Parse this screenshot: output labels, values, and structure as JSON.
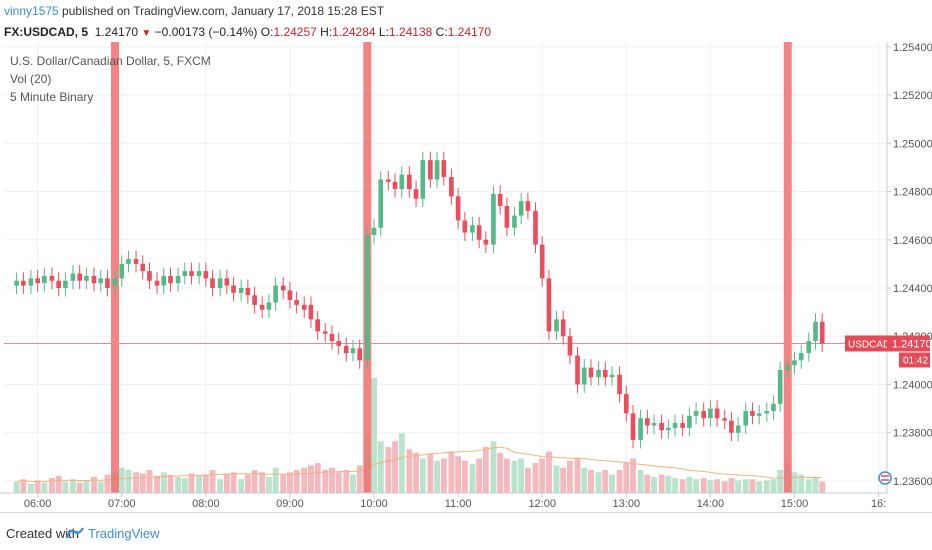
{
  "header": {
    "user": "vinny1575",
    "published": " published on TradingView.com, January 17, 2018 15:28 EST"
  },
  "quote": {
    "symbol": "FX:USDCAD, 5",
    "last": "1.24170",
    "arrow": "▼",
    "change": "−0.00173 (−0.14%)",
    "o_label": "O:",
    "o": "1.24257",
    "h_label": "H:",
    "h": "1.24284",
    "l_label": "L:",
    "l": "1.24138",
    "c_label": "C:",
    "c": "1.24170"
  },
  "legend": {
    "instrument": "U.S. Dollar/Canadian Dollar, 5, FXCM",
    "volume": "Vol (20)",
    "indicator": "5 Minute Binary"
  },
  "price_tag": {
    "symbol": "USDCAD",
    "price": "1.24170",
    "countdown": "01:42"
  },
  "footer": {
    "created": "Created with",
    "brand": "TradingView"
  },
  "colors": {
    "up": "#53b987",
    "down": "#eb4d5c",
    "highlight": "#f26d6d",
    "volume_up": "#b9e3cc",
    "volume_down": "#f4b9bf",
    "volume_ma": "#f5b27a",
    "last_price_line": "#e88b90",
    "tag_bg": "#e24b57"
  },
  "chart_data": {
    "type": "candlestick",
    "title": "U.S. Dollar/Canadian Dollar, 5, FXCM",
    "y_ticks": [
      "1.25400",
      "1.25200",
      "1.25000",
      "1.24800",
      "1.24600",
      "1.24400",
      "1.24200",
      "1.24000",
      "1.23800",
      "1.23600"
    ],
    "x_ticks": [
      "06:00",
      "07:00",
      "08:00",
      "09:00",
      "10:00",
      "11:00",
      "12:00",
      "13:00",
      "14:00",
      "15:00",
      "16:"
    ],
    "ylim": [
      1.2355,
      1.2542
    ],
    "xlim": [
      5.6,
      16.1
    ],
    "last_price": 1.2417,
    "highlight_times": [
      6.92,
      9.92,
      14.92
    ],
    "candles": [
      [
        5.75,
        1.2441,
        1.2443
      ],
      [
        5.83,
        1.2443,
        1.2441
      ],
      [
        5.92,
        1.2441,
        1.2444
      ],
      [
        6.0,
        1.2444,
        1.2442
      ],
      [
        6.08,
        1.2442,
        1.2445
      ],
      [
        6.17,
        1.2445,
        1.2443
      ],
      [
        6.25,
        1.2443,
        1.244
      ],
      [
        6.33,
        1.244,
        1.2443
      ],
      [
        6.42,
        1.2443,
        1.2446
      ],
      [
        6.5,
        1.2446,
        1.2443
      ],
      [
        6.58,
        1.2443,
        1.2445
      ],
      [
        6.67,
        1.2445,
        1.2442
      ],
      [
        6.75,
        1.2442,
        1.2444
      ],
      [
        6.83,
        1.2444,
        1.244
      ],
      [
        6.92,
        1.2441,
        1.2444
      ],
      [
        7.0,
        1.2444,
        1.245
      ],
      [
        7.08,
        1.245,
        1.2452
      ],
      [
        7.17,
        1.2452,
        1.245
      ],
      [
        7.25,
        1.245,
        1.2447
      ],
      [
        7.33,
        1.2447,
        1.2443
      ],
      [
        7.42,
        1.2443,
        1.2441
      ],
      [
        7.5,
        1.2441,
        1.2445
      ],
      [
        7.58,
        1.2445,
        1.2442
      ],
      [
        7.67,
        1.2442,
        1.2445
      ],
      [
        7.75,
        1.2445,
        1.2447
      ],
      [
        7.83,
        1.2447,
        1.2445
      ],
      [
        7.92,
        1.2445,
        1.2447
      ],
      [
        8.0,
        1.2447,
        1.2444
      ],
      [
        8.08,
        1.2444,
        1.244
      ],
      [
        8.17,
        1.244,
        1.2444
      ],
      [
        8.25,
        1.2444,
        1.2441
      ],
      [
        8.33,
        1.2441,
        1.2438
      ],
      [
        8.42,
        1.2438,
        1.244
      ],
      [
        8.5,
        1.244,
        1.2437
      ],
      [
        8.58,
        1.2437,
        1.2433
      ],
      [
        8.67,
        1.2433,
        1.2431
      ],
      [
        8.75,
        1.2431,
        1.2434
      ],
      [
        8.83,
        1.2434,
        1.2441
      ],
      [
        8.92,
        1.2441,
        1.2439
      ],
      [
        9.0,
        1.2439,
        1.2435
      ],
      [
        9.08,
        1.2435,
        1.2433
      ],
      [
        9.17,
        1.2433,
        1.2431
      ],
      [
        9.25,
        1.2433,
        1.2427
      ],
      [
        9.33,
        1.2427,
        1.2422
      ],
      [
        9.42,
        1.2422,
        1.2421
      ],
      [
        9.5,
        1.2421,
        1.2418
      ],
      [
        9.58,
        1.2418,
        1.2416
      ],
      [
        9.67,
        1.2416,
        1.2413
      ],
      [
        9.75,
        1.2413,
        1.2415
      ],
      [
        9.83,
        1.2415,
        1.241
      ],
      [
        9.92,
        1.241,
        1.2462
      ],
      [
        10.0,
        1.2462,
        1.2465
      ],
      [
        10.08,
        1.2465,
        1.2485
      ],
      [
        10.17,
        1.2485,
        1.2484
      ],
      [
        10.25,
        1.2484,
        1.2481
      ],
      [
        10.33,
        1.2481,
        1.2487
      ],
      [
        10.42,
        1.2487,
        1.2481
      ],
      [
        10.5,
        1.2481,
        1.2477
      ],
      [
        10.58,
        1.2477,
        1.2493
      ],
      [
        10.67,
        1.2493,
        1.2485
      ],
      [
        10.75,
        1.2485,
        1.2493
      ],
      [
        10.83,
        1.2493,
        1.2486
      ],
      [
        10.92,
        1.2486,
        1.2478
      ],
      [
        11.0,
        1.2478,
        1.2468
      ],
      [
        11.08,
        1.2468,
        1.2463
      ],
      [
        11.17,
        1.2463,
        1.2466
      ],
      [
        11.25,
        1.2466,
        1.246
      ],
      [
        11.33,
        1.246,
        1.2458
      ],
      [
        11.42,
        1.2458,
        1.2479
      ],
      [
        11.5,
        1.2479,
        1.2474
      ],
      [
        11.58,
        1.2474,
        1.2465
      ],
      [
        11.67,
        1.2465,
        1.247
      ],
      [
        11.75,
        1.247,
        1.2476
      ],
      [
        11.83,
        1.2476,
        1.2472
      ],
      [
        11.92,
        1.2472,
        1.2458
      ],
      [
        12.0,
        1.2458,
        1.2444
      ],
      [
        12.08,
        1.2444,
        1.2422
      ],
      [
        12.17,
        1.2422,
        1.2427
      ],
      [
        12.25,
        1.2427,
        1.242
      ],
      [
        12.33,
        1.242,
        1.2412
      ],
      [
        12.42,
        1.2412,
        1.24
      ],
      [
        12.5,
        1.24,
        1.2407
      ],
      [
        12.58,
        1.2407,
        1.2403
      ],
      [
        12.67,
        1.2403,
        1.2406
      ],
      [
        12.75,
        1.2406,
        1.2403
      ],
      [
        12.83,
        1.2403,
        1.2404
      ],
      [
        12.92,
        1.2404,
        1.2396
      ],
      [
        13.0,
        1.2396,
        1.2388
      ],
      [
        13.08,
        1.2388,
        1.2377
      ],
      [
        13.17,
        1.2377,
        1.2386
      ],
      [
        13.25,
        1.2386,
        1.2383
      ],
      [
        13.33,
        1.2383,
        1.2384
      ],
      [
        13.42,
        1.2384,
        1.2381
      ],
      [
        13.5,
        1.2381,
        1.2382
      ],
      [
        13.58,
        1.2382,
        1.2384
      ],
      [
        13.67,
        1.2384,
        1.2382
      ],
      [
        13.75,
        1.2382,
        1.2387
      ],
      [
        13.83,
        1.2387,
        1.2389
      ],
      [
        13.92,
        1.2389,
        1.2386
      ],
      [
        14.0,
        1.2386,
        1.239
      ],
      [
        14.08,
        1.239,
        1.2386
      ],
      [
        14.17,
        1.2386,
        1.2385
      ],
      [
        14.25,
        1.2385,
        1.238
      ],
      [
        14.33,
        1.238,
        1.2383
      ],
      [
        14.42,
        1.2383,
        1.2389
      ],
      [
        14.5,
        1.2389,
        1.2387
      ],
      [
        14.58,
        1.2387,
        1.2388
      ],
      [
        14.67,
        1.2388,
        1.2389
      ],
      [
        14.75,
        1.2389,
        1.2392
      ],
      [
        14.83,
        1.2392,
        1.2406
      ],
      [
        14.92,
        1.2406,
        1.2408
      ],
      [
        15.0,
        1.2408,
        1.241
      ],
      [
        15.08,
        1.241,
        1.2413
      ],
      [
        15.17,
        1.2413,
        1.2418
      ],
      [
        15.25,
        1.2418,
        1.2426
      ],
      [
        15.33,
        1.2426,
        1.2417
      ]
    ],
    "volumes": [
      [
        5.75,
        0.1
      ],
      [
        5.83,
        0.12
      ],
      [
        5.92,
        0.08
      ],
      [
        6.0,
        0.11
      ],
      [
        6.08,
        0.09
      ],
      [
        6.17,
        0.13
      ],
      [
        6.25,
        0.15
      ],
      [
        6.33,
        0.1
      ],
      [
        6.42,
        0.12
      ],
      [
        6.5,
        0.09
      ],
      [
        6.58,
        0.11
      ],
      [
        6.67,
        0.14
      ],
      [
        6.75,
        0.1
      ],
      [
        6.83,
        0.16
      ],
      [
        6.92,
        0.18
      ],
      [
        7.0,
        0.22
      ],
      [
        7.08,
        0.2
      ],
      [
        7.17,
        0.18
      ],
      [
        7.25,
        0.17
      ],
      [
        7.33,
        0.2
      ],
      [
        7.42,
        0.15
      ],
      [
        7.5,
        0.18
      ],
      [
        7.58,
        0.16
      ],
      [
        7.67,
        0.14
      ],
      [
        7.75,
        0.13
      ],
      [
        7.83,
        0.17
      ],
      [
        7.92,
        0.15
      ],
      [
        8.0,
        0.16
      ],
      [
        8.08,
        0.2
      ],
      [
        8.17,
        0.12
      ],
      [
        8.25,
        0.17
      ],
      [
        8.33,
        0.18
      ],
      [
        8.42,
        0.12
      ],
      [
        8.5,
        0.16
      ],
      [
        8.58,
        0.2
      ],
      [
        8.67,
        0.18
      ],
      [
        8.75,
        0.14
      ],
      [
        8.83,
        0.22
      ],
      [
        8.92,
        0.16
      ],
      [
        9.0,
        0.18
      ],
      [
        9.08,
        0.2
      ],
      [
        9.17,
        0.22
      ],
      [
        9.25,
        0.24
      ],
      [
        9.33,
        0.26
      ],
      [
        9.42,
        0.2
      ],
      [
        9.5,
        0.22
      ],
      [
        9.58,
        0.18
      ],
      [
        9.67,
        0.2
      ],
      [
        9.75,
        0.16
      ],
      [
        9.83,
        0.24
      ],
      [
        9.92,
        0.5
      ],
      [
        10.0,
        1.0
      ],
      [
        10.08,
        0.45
      ],
      [
        10.17,
        0.4
      ],
      [
        10.25,
        0.45
      ],
      [
        10.33,
        0.52
      ],
      [
        10.42,
        0.38
      ],
      [
        10.5,
        0.35
      ],
      [
        10.58,
        0.3
      ],
      [
        10.67,
        0.34
      ],
      [
        10.75,
        0.28
      ],
      [
        10.83,
        0.3
      ],
      [
        10.92,
        0.36
      ],
      [
        11.0,
        0.32
      ],
      [
        11.08,
        0.28
      ],
      [
        11.17,
        0.25
      ],
      [
        11.25,
        0.3
      ],
      [
        11.33,
        0.4
      ],
      [
        11.42,
        0.45
      ],
      [
        11.5,
        0.35
      ],
      [
        11.58,
        0.3
      ],
      [
        11.67,
        0.28
      ],
      [
        11.75,
        0.3
      ],
      [
        11.83,
        0.22
      ],
      [
        11.92,
        0.26
      ],
      [
        12.0,
        0.3
      ],
      [
        12.08,
        0.36
      ],
      [
        12.17,
        0.24
      ],
      [
        12.25,
        0.22
      ],
      [
        12.33,
        0.28
      ],
      [
        12.42,
        0.3
      ],
      [
        12.5,
        0.22
      ],
      [
        12.58,
        0.2
      ],
      [
        12.67,
        0.18
      ],
      [
        12.75,
        0.2
      ],
      [
        12.83,
        0.16
      ],
      [
        12.92,
        0.2
      ],
      [
        13.0,
        0.26
      ],
      [
        13.08,
        0.3
      ],
      [
        13.17,
        0.2
      ],
      [
        13.25,
        0.16
      ],
      [
        13.33,
        0.14
      ],
      [
        13.42,
        0.16
      ],
      [
        13.5,
        0.15
      ],
      [
        13.58,
        0.13
      ],
      [
        13.67,
        0.12
      ],
      [
        13.75,
        0.14
      ],
      [
        13.83,
        0.12
      ],
      [
        13.92,
        0.13
      ],
      [
        14.0,
        0.11
      ],
      [
        14.08,
        0.12
      ],
      [
        14.17,
        0.1
      ],
      [
        14.25,
        0.13
      ],
      [
        14.33,
        0.11
      ],
      [
        14.42,
        0.12
      ],
      [
        14.5,
        0.12
      ],
      [
        14.58,
        0.1
      ],
      [
        14.67,
        0.11
      ],
      [
        14.75,
        0.12
      ],
      [
        14.83,
        0.2
      ],
      [
        14.92,
        0.26
      ],
      [
        15.0,
        0.18
      ],
      [
        15.08,
        0.16
      ],
      [
        15.17,
        0.12
      ],
      [
        15.25,
        0.14
      ],
      [
        15.33,
        0.1
      ]
    ]
  }
}
